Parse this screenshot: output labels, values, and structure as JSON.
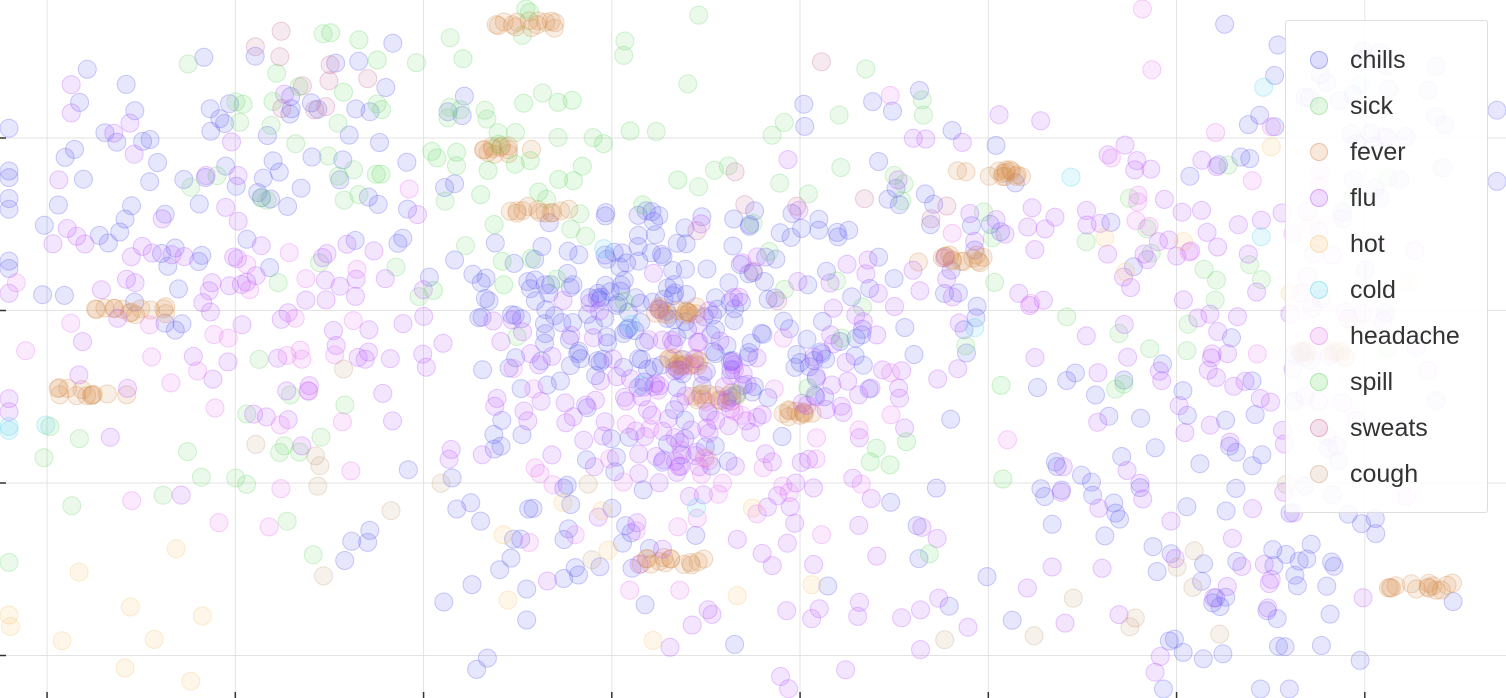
{
  "chart_data": {
    "type": "scatter",
    "title": "",
    "xlabel": "",
    "ylabel": "",
    "grid": true,
    "legend_position": "top-right",
    "marker_opacity": 0.15,
    "xlim": [
      -12,
      4
    ],
    "ylim": [
      -2.2,
      1.8
    ],
    "x_ticks": [
      -11.5,
      -9.5,
      -7.5,
      -5.5,
      -3.5,
      -1.5,
      0.5,
      2.5
    ],
    "y_ticks": [
      -2,
      -1,
      0,
      1
    ],
    "series": [
      {
        "name": "chills",
        "color": "#5a5af0",
        "clusters": [
          [
            -10.5,
            0.6,
            50
          ],
          [
            -8.5,
            1.0,
            40
          ],
          [
            -5.5,
            0.1,
            120
          ],
          [
            -4.2,
            -0.2,
            80
          ],
          [
            -2.5,
            0.5,
            40
          ],
          [
            0.2,
            -0.9,
            60
          ],
          [
            -6.0,
            -1.2,
            60
          ],
          [
            1.5,
            -1.6,
            40
          ],
          [
            2.5,
            1.1,
            40
          ]
        ],
        "sizes": [
          1.2,
          1.0,
          0.9,
          0.8,
          1.1,
          1.3,
          1.0,
          1.1,
          0.9
        ]
      },
      {
        "name": "sick",
        "color": "#6fd46f",
        "clusters": [
          [
            -8.0,
            0.8,
            30
          ],
          [
            -10.0,
            -0.8,
            20
          ],
          [
            -3.0,
            0.7,
            20
          ],
          [
            1.0,
            0.2,
            20
          ],
          [
            -6.0,
            1.2,
            20
          ]
        ],
        "sizes": [
          1.1,
          1.0,
          1.0,
          1.2,
          1.0
        ]
      },
      {
        "name": "fever",
        "color": "#d58c4a",
        "clusters": [
          [
            -6.4,
            1.66,
            14
          ],
          [
            -6.55,
            0.93,
            12
          ],
          [
            -6.25,
            0.58,
            12
          ],
          [
            -10.6,
            0.0,
            14
          ],
          [
            -11.0,
            -0.47,
            12
          ],
          [
            -4.8,
            0.0,
            14
          ],
          [
            -4.8,
            -0.3,
            14
          ],
          [
            -4.4,
            -0.5,
            14
          ],
          [
            -3.5,
            -0.6,
            10
          ],
          [
            -4.85,
            -1.45,
            14
          ],
          [
            -1.5,
            0.8,
            14
          ],
          [
            -1.9,
            0.3,
            14
          ],
          [
            2.1,
            -0.25,
            12
          ],
          [
            3.1,
            -1.6,
            14
          ]
        ],
        "sizes": [
          0.18,
          0.2,
          0.18,
          0.2,
          0.2,
          0.12,
          0.12,
          0.12,
          0.1,
          0.2,
          0.2,
          0.2,
          0.15,
          0.2
        ]
      },
      {
        "name": "flu",
        "color": "#b450ff",
        "clusters": [
          [
            -10.0,
            0.3,
            50
          ],
          [
            -8.5,
            -0.3,
            40
          ],
          [
            -5.0,
            -0.5,
            100
          ],
          [
            -3.0,
            -0.2,
            40
          ],
          [
            -0.8,
            0.4,
            50
          ],
          [
            1.5,
            0.0,
            50
          ],
          [
            -3.5,
            -1.5,
            40
          ],
          [
            1.0,
            -1.2,
            40
          ]
        ],
        "sizes": [
          1.2,
          1.0,
          0.9,
          0.9,
          1.2,
          1.2,
          1.1,
          1.2
        ]
      },
      {
        "name": "hot",
        "color": "#f5c46a",
        "clusters": [
          [
            -10.8,
            -1.6,
            10
          ],
          [
            -5.0,
            -1.2,
            10
          ],
          [
            2.0,
            0.4,
            8
          ]
        ],
        "sizes": [
          1.0,
          1.0,
          1.0
        ]
      },
      {
        "name": "cold",
        "color": "#4fd0e8",
        "clusters": [
          [
            -11.8,
            -0.7,
            3
          ],
          [
            0.8,
            0.9,
            5
          ],
          [
            -5.0,
            -0.4,
            5
          ]
        ],
        "sizes": [
          0.5,
          1.2,
          1.0
        ]
      },
      {
        "name": "headache",
        "color": "#e66ef0",
        "clusters": [
          [
            -9.5,
            -0.2,
            30
          ],
          [
            -4.5,
            -0.9,
            40
          ],
          [
            0.5,
            0.8,
            20
          ]
        ],
        "sizes": [
          1.3,
          1.0,
          1.3
        ]
      },
      {
        "name": "spill",
        "color": "#5fd85f",
        "clusters": [
          [
            -7.5,
            1.2,
            20
          ],
          [
            -6.0,
            0.8,
            20
          ],
          [
            -2.0,
            -0.9,
            10
          ]
        ],
        "sizes": [
          1.0,
          0.8,
          1.0
        ]
      },
      {
        "name": "sweats",
        "color": "#c46a9a",
        "clusters": [
          [
            -9.0,
            1.3,
            10
          ],
          [
            -3.5,
            0.6,
            10
          ]
        ],
        "sizes": [
          0.5,
          1.0
        ]
      },
      {
        "name": "cough",
        "color": "#c7a07e",
        "clusters": [
          [
            -8.0,
            -1.0,
            10
          ],
          [
            0.0,
            -1.5,
            10
          ]
        ],
        "sizes": [
          1.0,
          1.0
        ]
      }
    ]
  }
}
